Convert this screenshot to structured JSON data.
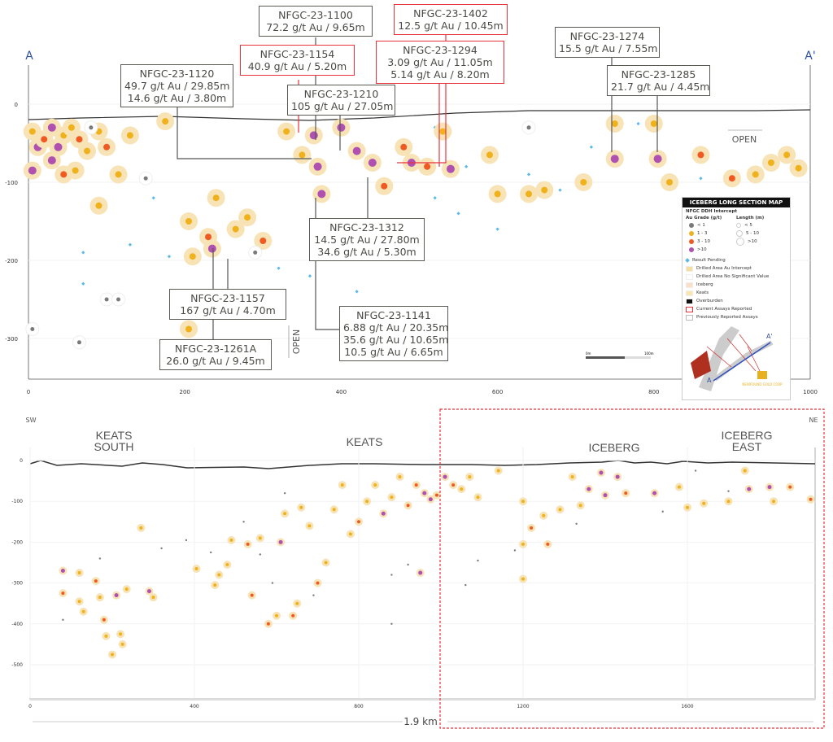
{
  "upper_section": {
    "left_label": "A",
    "right_label": "A'",
    "x_ticks": [
      "0",
      "200",
      "400",
      "600",
      "800",
      "1000"
    ],
    "y_ticks": [
      "0",
      "-100",
      "-200",
      "-300"
    ],
    "open_labels": [
      "OPEN",
      "OPEN"
    ],
    "callouts": [
      {
        "hole": "NFGC-23-1100",
        "lines": [
          "72.2 g/t Au / 9.65m"
        ],
        "status": "previous"
      },
      {
        "hole": "NFGC-23-1402",
        "lines": [
          "12.5 g/t Au / 10.45m"
        ],
        "status": "current"
      },
      {
        "hole": "NFGC-23-1154",
        "lines": [
          "40.9 g/t Au / 5.20m"
        ],
        "status": "current"
      },
      {
        "hole": "NFGC-23-1294",
        "lines": [
          "3.09 g/t Au / 11.05m",
          "5.14 g/t Au / 8.20m"
        ],
        "status": "current"
      },
      {
        "hole": "NFGC-23-1120",
        "lines": [
          "49.7 g/t Au / 29.85m",
          "14.6 g/t Au / 3.80m"
        ],
        "status": "previous"
      },
      {
        "hole": "NFGC-23-1210",
        "lines": [
          "105 g/t Au / 27.05m"
        ],
        "status": "previous"
      },
      {
        "hole": "NFGC-23-1274",
        "lines": [
          "15.5 g/t Au / 7.55m"
        ],
        "status": "previous"
      },
      {
        "hole": "NFGC-23-1285",
        "lines": [
          "21.7 g/t Au / 4.45m"
        ],
        "status": "previous"
      },
      {
        "hole": "NFGC-23-1312",
        "lines": [
          "14.5 g/t Au / 27.80m",
          "34.6 g/t Au / 5.30m"
        ],
        "status": "previous"
      },
      {
        "hole": "NFGC-23-1157",
        "lines": [
          "167 g/t  Au / 4.70m"
        ],
        "status": "previous"
      },
      {
        "hole": "NFGC-23-1141",
        "lines": [
          "6.88 g/t Au / 20.35m",
          "35.6 g/t Au / 10.65m",
          "10.5 g/t Au / 6.65m"
        ],
        "status": "previous"
      },
      {
        "hole": "NFGC-23-1261A",
        "lines": [
          "26.0 g/t Au / 9.45m"
        ],
        "status": "previous"
      }
    ],
    "intercepts": [
      [
        5,
        -35,
        "1-3"
      ],
      [
        12,
        -55,
        "gt10"
      ],
      [
        20,
        -45,
        "3-10"
      ],
      [
        30,
        -30,
        "gt10"
      ],
      [
        38,
        -55,
        "gt10"
      ],
      [
        45,
        -40,
        "1-3"
      ],
      [
        55,
        -30,
        "1-3"
      ],
      [
        65,
        -45,
        "3-10"
      ],
      [
        75,
        -60,
        "1-3"
      ],
      [
        90,
        -35,
        "1-3"
      ],
      [
        100,
        -55,
        "3-10"
      ],
      [
        115,
        -90,
        "1-3"
      ],
      [
        130,
        -40,
        "1-3"
      ],
      [
        5,
        -85,
        "gt10"
      ],
      [
        30,
        -72,
        "gt10"
      ],
      [
        45,
        -90,
        "3-10"
      ],
      [
        60,
        -85,
        "1-3"
      ],
      [
        80,
        -30,
        "lt1"
      ],
      [
        90,
        -130,
        "1-3"
      ],
      [
        150,
        -95,
        "lt1"
      ],
      [
        175,
        -22,
        "1-3"
      ],
      [
        205,
        -150,
        "1-3"
      ],
      [
        210,
        -195,
        "1-3"
      ],
      [
        230,
        -170,
        "3-10"
      ],
      [
        235,
        -185,
        "gt10"
      ],
      [
        240,
        -120,
        "1-3"
      ],
      [
        265,
        -160,
        "1-3"
      ],
      [
        280,
        -145,
        "1-3"
      ],
      [
        300,
        -175,
        "3-10"
      ],
      [
        205,
        -288,
        "1-3"
      ],
      [
        330,
        -35,
        "1-3"
      ],
      [
        350,
        -65,
        "1-3"
      ],
      [
        365,
        -40,
        "gt10"
      ],
      [
        370,
        -80,
        "gt10"
      ],
      [
        375,
        -115,
        "gt10"
      ],
      [
        400,
        -30,
        "gt10"
      ],
      [
        420,
        -60,
        "gt10"
      ],
      [
        440,
        -75,
        "gt10"
      ],
      [
        455,
        -105,
        "3-10"
      ],
      [
        480,
        -55,
        "3-10"
      ],
      [
        490,
        -75,
        "gt10"
      ],
      [
        510,
        -80,
        "3-10"
      ],
      [
        540,
        -83,
        "gt10"
      ],
      [
        530,
        -35,
        "1-3"
      ],
      [
        590,
        -65,
        "1-3"
      ],
      [
        600,
        -115,
        "1-3"
      ],
      [
        640,
        -115,
        "1-3"
      ],
      [
        660,
        -110,
        "1-3"
      ],
      [
        710,
        -100,
        "1-3"
      ],
      [
        750,
        -25,
        "1-3"
      ],
      [
        750,
        -70,
        "gt10"
      ],
      [
        800,
        -25,
        "1-3"
      ],
      [
        805,
        -70,
        "gt10"
      ],
      [
        820,
        -100,
        "1-3"
      ],
      [
        860,
        -65,
        "3-10"
      ],
      [
        900,
        -95,
        "3-10"
      ],
      [
        930,
        -90,
        "1-3"
      ],
      [
        950,
        -75,
        "1-3"
      ],
      [
        970,
        -65,
        "1-3"
      ],
      [
        985,
        -82,
        "1-3"
      ],
      [
        100,
        -250,
        "lt1"
      ],
      [
        115,
        -250,
        "lt1"
      ],
      [
        65,
        -305,
        "lt1"
      ],
      [
        5,
        -288,
        "lt1"
      ],
      [
        290,
        -190,
        "lt1"
      ],
      [
        640,
        -30,
        "lt1"
      ]
    ],
    "pending": [
      [
        70,
        -190
      ],
      [
        70,
        -230
      ],
      [
        130,
        -180
      ],
      [
        160,
        -120
      ],
      [
        180,
        -195
      ],
      [
        220,
        -260
      ],
      [
        320,
        -210
      ],
      [
        360,
        -220
      ],
      [
        400,
        -150
      ],
      [
        420,
        -240
      ],
      [
        470,
        -190
      ],
      [
        500,
        -150
      ],
      [
        520,
        -30
      ],
      [
        560,
        -80
      ],
      [
        600,
        -160
      ],
      [
        640,
        -90
      ],
      [
        680,
        -110
      ],
      [
        720,
        -55
      ],
      [
        780,
        -25
      ],
      [
        860,
        -95
      ],
      [
        550,
        -140
      ],
      [
        520,
        -120
      ]
    ]
  },
  "legend": {
    "title": "ICEBERG LONG SECTION MAP",
    "subtitle": "NFGC DDH Intercept",
    "grade_header": "Au Grade (g/t)",
    "length_header": "Length (m)",
    "grades": [
      {
        "label": "< 1",
        "color": "#7a7a7a"
      },
      {
        "label": "1 - 3",
        "color": "#f0b21c"
      },
      {
        "label": "3 - 10",
        "color": "#f05a22"
      },
      {
        "label": ">10",
        "color": "#b050b0"
      }
    ],
    "lengths": [
      "< 5",
      "5 - 10",
      ">10"
    ],
    "items": [
      {
        "label": "Result Pending",
        "color": "#5bb8e8"
      },
      {
        "label": "Drilled Area Au Intercept",
        "color": "#f5dfa0"
      },
      {
        "label": "Drilled Area No Significant Value",
        "color": "#ffffff"
      },
      {
        "label": "Iceberg",
        "color": "#fbe0c8"
      },
      {
        "label": "Keats",
        "color": "#f7e6b0"
      },
      {
        "label": "Overburden",
        "color": "#111111"
      },
      {
        "label": "Current Assays Reported",
        "color": "#e8323c"
      },
      {
        "label": "Previously Reported Assays",
        "color": "#bbbbbb"
      }
    ],
    "scale_labels": [
      "0m",
      "100m"
    ],
    "inset_labels": [
      "A",
      "A'"
    ],
    "logo_text": "NEWFOUND GOLD CORP"
  },
  "lower_section": {
    "left_label": "SW",
    "right_label": "NE",
    "regions": [
      [
        "KEATS",
        "SOUTH"
      ],
      [
        "KEATS"
      ],
      [
        "ICEBERG"
      ],
      [
        "ICEBERG",
        "EAST"
      ]
    ],
    "x_ticks": [
      "0",
      "400",
      "800",
      "1200",
      "1600"
    ],
    "y_ticks": [
      "0",
      "-100",
      "-200",
      "-300",
      "-400",
      "-500"
    ],
    "length_label": "1.9 km",
    "intercepts": [
      [
        80,
        -270,
        "gt10"
      ],
      [
        80,
        -325,
        "3-10"
      ],
      [
        120,
        -275,
        "1-3"
      ],
      [
        120,
        -345,
        "1-3"
      ],
      [
        130,
        -370,
        "1-3"
      ],
      [
        160,
        -295,
        "3-10"
      ],
      [
        170,
        -335,
        "1-3"
      ],
      [
        180,
        -390,
        "3-10"
      ],
      [
        185,
        -430,
        "1-3"
      ],
      [
        200,
        -475,
        "1-3"
      ],
      [
        210,
        -330,
        "gt10"
      ],
      [
        220,
        -425,
        "1-3"
      ],
      [
        225,
        -450,
        "1-3"
      ],
      [
        235,
        -315,
        "1-3"
      ],
      [
        270,
        -165,
        "1-3"
      ],
      [
        290,
        -320,
        "gt10"
      ],
      [
        300,
        -335,
        "1-3"
      ],
      [
        405,
        -265,
        "1-3"
      ],
      [
        450,
        -305,
        "1-3"
      ],
      [
        460,
        -280,
        "1-3"
      ],
      [
        480,
        -255,
        "1-3"
      ],
      [
        490,
        -195,
        "1-3"
      ],
      [
        530,
        -205,
        "3-10"
      ],
      [
        540,
        -330,
        "3-10"
      ],
      [
        560,
        -190,
        "1-3"
      ],
      [
        580,
        -400,
        "3-10"
      ],
      [
        600,
        -380,
        "1-3"
      ],
      [
        610,
        -200,
        "gt10"
      ],
      [
        620,
        -130,
        "1-3"
      ],
      [
        640,
        -380,
        "3-10"
      ],
      [
        650,
        -350,
        "1-3"
      ],
      [
        660,
        -115,
        "1-3"
      ],
      [
        680,
        -160,
        "1-3"
      ],
      [
        700,
        -300,
        "3-10"
      ],
      [
        720,
        -250,
        "1-3"
      ],
      [
        740,
        -120,
        "1-3"
      ],
      [
        760,
        -60,
        "1-3"
      ],
      [
        780,
        -180,
        "1-3"
      ],
      [
        800,
        -150,
        "3-10"
      ],
      [
        820,
        -100,
        "1-3"
      ],
      [
        840,
        -60,
        "1-3"
      ],
      [
        860,
        -130,
        "gt10"
      ],
      [
        880,
        -90,
        "1-3"
      ],
      [
        900,
        -40,
        "1-3"
      ],
      [
        920,
        -110,
        "3-10"
      ],
      [
        940,
        -60,
        "3-10"
      ],
      [
        960,
        -80,
        "gt10"
      ],
      [
        975,
        -95,
        "gt10"
      ],
      [
        990,
        -85,
        "3-10"
      ],
      [
        1010,
        -40,
        "gt10"
      ],
      [
        1030,
        -60,
        "3-10"
      ],
      [
        1050,
        -70,
        "1-3"
      ],
      [
        1070,
        -40,
        "1-3"
      ],
      [
        1090,
        -90,
        "1-3"
      ],
      [
        1140,
        -25,
        "1-3"
      ],
      [
        1200,
        -100,
        "1-3"
      ],
      [
        1200,
        -205,
        "1-3"
      ],
      [
        1220,
        -165,
        "3-10"
      ],
      [
        1250,
        -135,
        "1-3"
      ],
      [
        1260,
        -205,
        "3-10"
      ],
      [
        1290,
        -120,
        "1-3"
      ],
      [
        1320,
        -40,
        "1-3"
      ],
      [
        1340,
        -110,
        "1-3"
      ],
      [
        1360,
        -70,
        "gt10"
      ],
      [
        1390,
        -30,
        "gt10"
      ],
      [
        1400,
        -85,
        "gt10"
      ],
      [
        1430,
        -40,
        "gt10"
      ],
      [
        1450,
        -80,
        "3-10"
      ],
      [
        1520,
        -80,
        "gt10"
      ],
      [
        1580,
        -65,
        "1-3"
      ],
      [
        1600,
        -115,
        "1-3"
      ],
      [
        1640,
        -105,
        "1-3"
      ],
      [
        1700,
        -100,
        "1-3"
      ],
      [
        1740,
        -25,
        "1-3"
      ],
      [
        1750,
        -70,
        "gt10"
      ],
      [
        1800,
        -65,
        "gt10"
      ],
      [
        1810,
        -100,
        "1-3"
      ],
      [
        1850,
        -65,
        "3-10"
      ],
      [
        1900,
        -95,
        "3-10"
      ],
      [
        1200,
        -290,
        "1-3"
      ],
      [
        950,
        -275,
        "gt10"
      ]
    ],
    "low_grade": [
      [
        80,
        -390
      ],
      [
        170,
        -240
      ],
      [
        380,
        -195
      ],
      [
        320,
        -215
      ],
      [
        440,
        -225
      ],
      [
        520,
        -150
      ],
      [
        560,
        -230
      ],
      [
        590,
        -300
      ],
      [
        620,
        -80
      ],
      [
        690,
        -330
      ],
      [
        880,
        -400
      ],
      [
        880,
        -280
      ],
      [
        920,
        -255
      ],
      [
        1060,
        -305
      ],
      [
        1090,
        -245
      ],
      [
        1180,
        -220
      ],
      [
        1330,
        -155
      ],
      [
        1540,
        -125
      ],
      [
        1620,
        -25
      ],
      [
        1700,
        -75
      ]
    ]
  },
  "colors": {
    "lt1": "#7a7a7a",
    "1-3": "#f0b21c",
    "3-10": "#f05a22",
    "gt10": "#b050b0",
    "pending": "#5bb8e8",
    "halo": "#f7e3b5",
    "highlight": "#e8323c",
    "axis_label": "#3050a0"
  }
}
